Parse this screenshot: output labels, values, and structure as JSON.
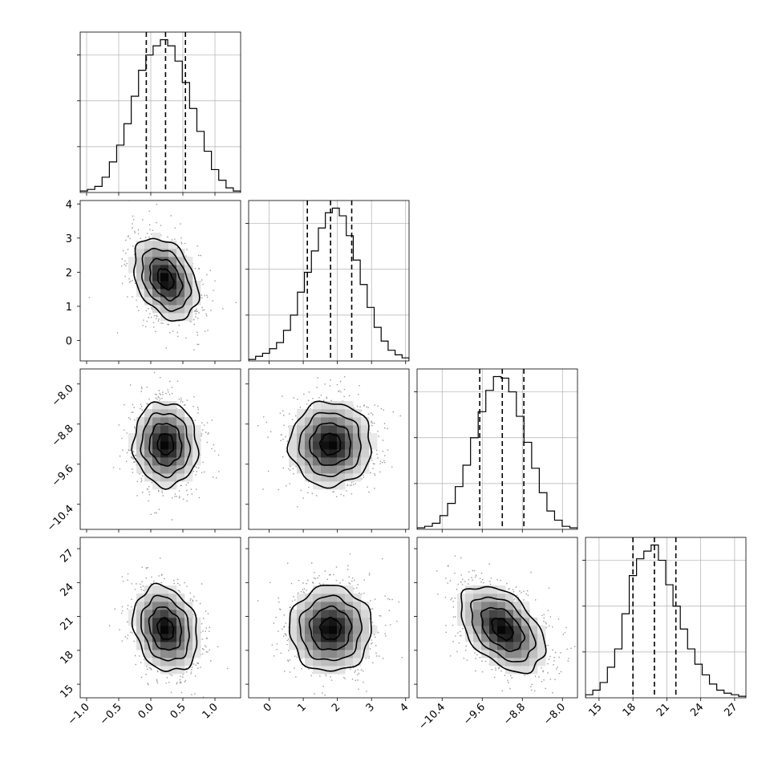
{
  "chart_data": {
    "type": "corner",
    "params": [
      {
        "range": [
          -1.1,
          1.4
        ],
        "ticks": [
          -1.0,
          -0.5,
          0.0,
          0.5,
          1.0
        ],
        "tick_labels": [
          "−1.0",
          "−0.5",
          "0.0",
          "0.5",
          "1.0"
        ],
        "quantiles": [
          -0.07,
          0.23,
          0.54
        ],
        "mean": 0.23,
        "sd": 0.25,
        "hist_counts": [
          0.01,
          0.02,
          0.04,
          0.1,
          0.2,
          0.31,
          0.45,
          0.63,
          0.8,
          0.9,
          0.96,
          1.0,
          0.96,
          0.86,
          0.72,
          0.55,
          0.4,
          0.27,
          0.15,
          0.08,
          0.03,
          0.01
        ]
      },
      {
        "range": [
          -0.6,
          4.1
        ],
        "ticks": [
          0,
          1,
          2,
          3,
          4
        ],
        "tick_labels": [
          "0",
          "1",
          "2",
          "3",
          "4"
        ],
        "quantiles": [
          1.12,
          1.8,
          2.42
        ],
        "mean": 1.8,
        "sd": 0.6,
        "hist_counts": [
          0.01,
          0.03,
          0.05,
          0.08,
          0.12,
          0.2,
          0.3,
          0.45,
          0.58,
          0.72,
          0.87,
          0.97,
          1.0,
          0.95,
          0.82,
          0.66,
          0.5,
          0.35,
          0.22,
          0.13,
          0.07,
          0.04,
          0.02
        ]
      },
      {
        "range": [
          -10.9,
          -7.7
        ],
        "ticks": [
          -10.4,
          -9.6,
          -8.8,
          -8.0
        ],
        "tick_labels": [
          "−10.4",
          "−9.6",
          "−8.8",
          "−8.0"
        ],
        "quantiles": [
          -9.65,
          -9.2,
          -8.77
        ],
        "mean": -9.2,
        "sd": 0.42,
        "hist_counts": [
          0.01,
          0.02,
          0.04,
          0.09,
          0.17,
          0.28,
          0.42,
          0.6,
          0.77,
          0.91,
          1.0,
          0.99,
          0.9,
          0.74,
          0.57,
          0.4,
          0.24,
          0.12,
          0.06,
          0.02,
          0.01
        ]
      },
      {
        "range": [
          13.8,
          28.0
        ],
        "ticks": [
          15,
          18,
          21,
          24,
          27
        ],
        "tick_labels": [
          "15",
          "18",
          "21",
          "24",
          "27"
        ],
        "quantiles": [
          18.0,
          19.9,
          21.8
        ],
        "mean": 19.9,
        "sd": 1.9,
        "hist_counts": [
          0.02,
          0.05,
          0.1,
          0.2,
          0.32,
          0.55,
          0.8,
          0.91,
          0.96,
          1.0,
          0.9,
          0.74,
          0.6,
          0.45,
          0.32,
          0.22,
          0.15,
          0.09,
          0.05,
          0.03,
          0.02,
          0.01
        ]
      }
    ],
    "correlations": [
      [
        1,
        -0.35,
        -0.05,
        -0.2
      ],
      [
        -0.35,
        1,
        0.0,
        0.0
      ],
      [
        -0.05,
        0.0,
        1,
        -0.45
      ],
      [
        -0.2,
        0.0,
        -0.45,
        1
      ]
    ],
    "contour_levels_sigma": [
      0.5,
      1.0,
      1.5,
      2.0
    ],
    "grid": true,
    "colors": {
      "line": "#000000",
      "scatter": "#9a9a9a"
    }
  }
}
